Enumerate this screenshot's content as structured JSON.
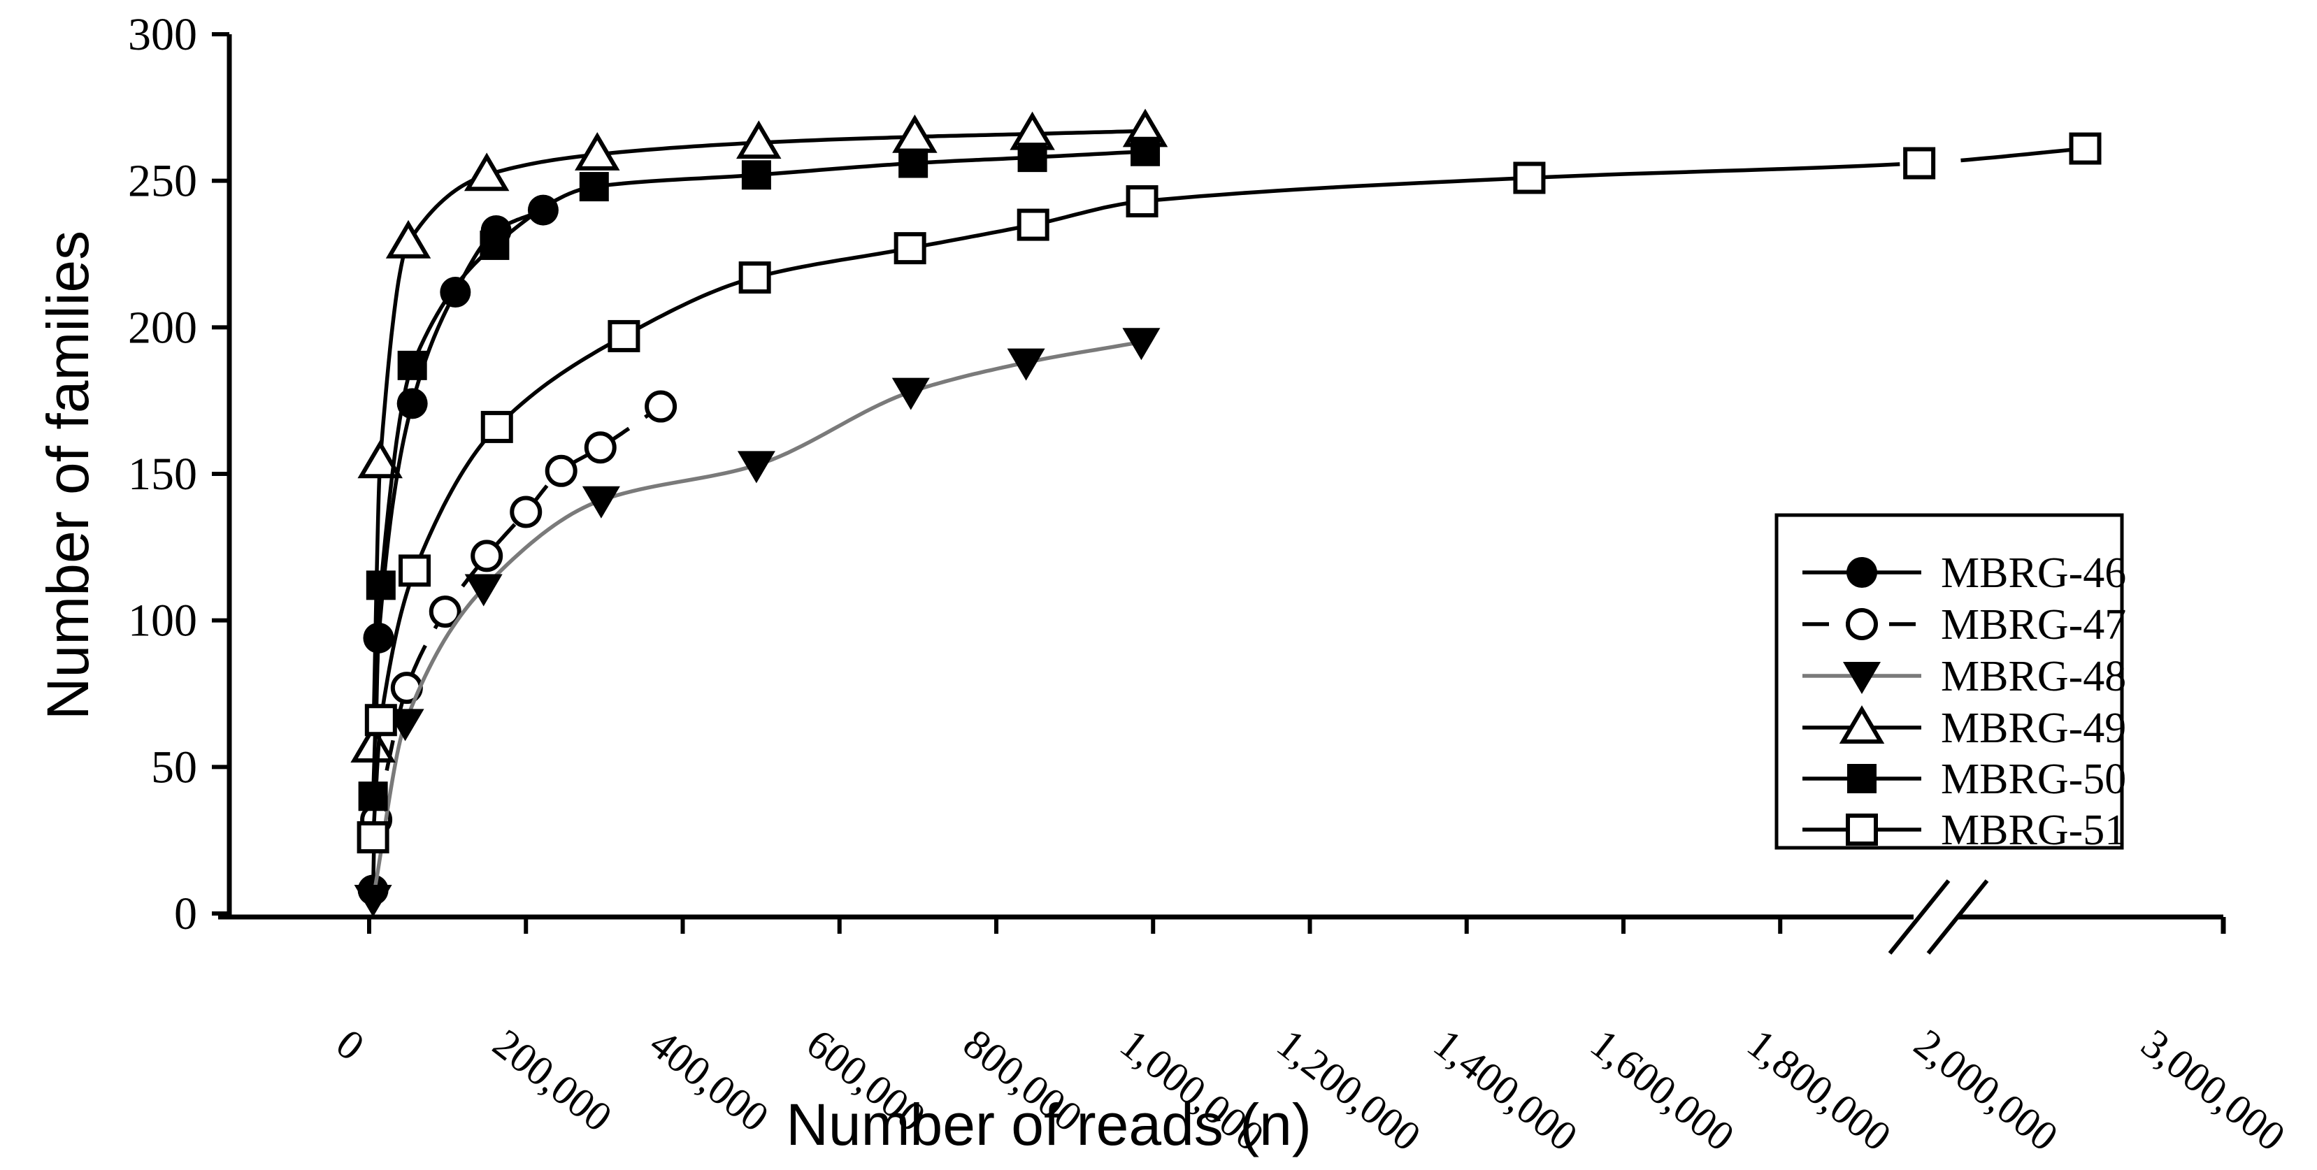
{
  "chart_data": {
    "type": "line",
    "title": "",
    "xlabel": "Number of reads (n)",
    "ylabel": "Number of families",
    "ylim": [
      0,
      300
    ],
    "xlim_visible": [
      0,
      3000000
    ],
    "grid": false,
    "legend_position": "right-inside-box",
    "background_color": "#ffffff",
    "axis_color": "#000000",
    "y_ticks": [
      0,
      50,
      100,
      150,
      200,
      250,
      300
    ],
    "x_ticks": [
      {
        "value": 0,
        "label": "0",
        "tick": true
      },
      {
        "value": 200000,
        "label": "200,000",
        "tick": true
      },
      {
        "value": 400000,
        "label": "400,000",
        "tick": true
      },
      {
        "value": 600000,
        "label": "600,000",
        "tick": true
      },
      {
        "value": 800000,
        "label": "800,000",
        "tick": true
      },
      {
        "value": 1000000,
        "label": "1,000,000",
        "tick": true
      },
      {
        "value": 1200000,
        "label": "1,200,000",
        "tick": true
      },
      {
        "value": 1400000,
        "label": "1,400,000",
        "tick": true
      },
      {
        "value": 1600000,
        "label": "1,600,000",
        "tick": true
      },
      {
        "value": 1800000,
        "label": "1,800,000",
        "tick": true
      },
      {
        "value": 2000000,
        "label": "2,000,000",
        "tick": false
      },
      {
        "value": 3000000,
        "label": "3,000,000",
        "tick": "end"
      }
    ],
    "axis_break": {
      "after_value": 1900000,
      "before_value": 2000000,
      "symbol": "//"
    },
    "series": [
      {
        "name": "MBRG-46",
        "marker": "filled-circle",
        "line": "solid",
        "line_color": "#000000",
        "x": [
          5000,
          12000,
          55000,
          110000,
          162000,
          222000
        ],
        "y": [
          8,
          94,
          174,
          212,
          233,
          240
        ]
      },
      {
        "name": "MBRG-47",
        "marker": "open-circle",
        "line": "dashed",
        "line_color": "#000000",
        "x": [
          9000,
          48000,
          97000,
          150000,
          200000,
          245000,
          295000,
          372000
        ],
        "y": [
          32,
          77,
          103,
          122,
          137,
          151,
          159,
          173
        ]
      },
      {
        "name": "MBRG-48",
        "marker": "filled-triangle-down",
        "line": "solid",
        "line_color": "#7a7a7a",
        "x": [
          5000,
          46000,
          146000,
          296000,
          494000,
          691000,
          838000,
          985000
        ],
        "y": [
          5,
          65,
          111,
          141,
          153,
          178,
          188,
          195
        ]
      },
      {
        "name": "MBRG-49",
        "marker": "open-triangle-up",
        "line": "solid",
        "line_color": "#000000",
        "x": [
          5000,
          14000,
          50000,
          150000,
          291000,
          497000,
          696000,
          846000,
          990000
        ],
        "y": [
          57,
          154,
          229,
          252,
          259,
          263,
          265,
          266,
          267
        ]
      },
      {
        "name": "MBRG-50",
        "marker": "filled-square",
        "line": "solid",
        "line_color": "#000000",
        "x": [
          5000,
          15000,
          55000,
          160000,
          287000,
          494000,
          694000,
          846000,
          990000
        ],
        "y": [
          40,
          112,
          187,
          228,
          248,
          252,
          256,
          258,
          260
        ]
      },
      {
        "name": "MBRG-51",
        "marker": "open-square",
        "line": "solid",
        "line_color": "#000000",
        "x": [
          5000,
          15000,
          58000,
          163000,
          325000,
          492000,
          690000,
          847000,
          986000,
          1480000,
          1970000,
          2500000
        ],
        "y": [
          26,
          66,
          117,
          166,
          197,
          217,
          227,
          235,
          243,
          251,
          256,
          261
        ]
      }
    ]
  }
}
